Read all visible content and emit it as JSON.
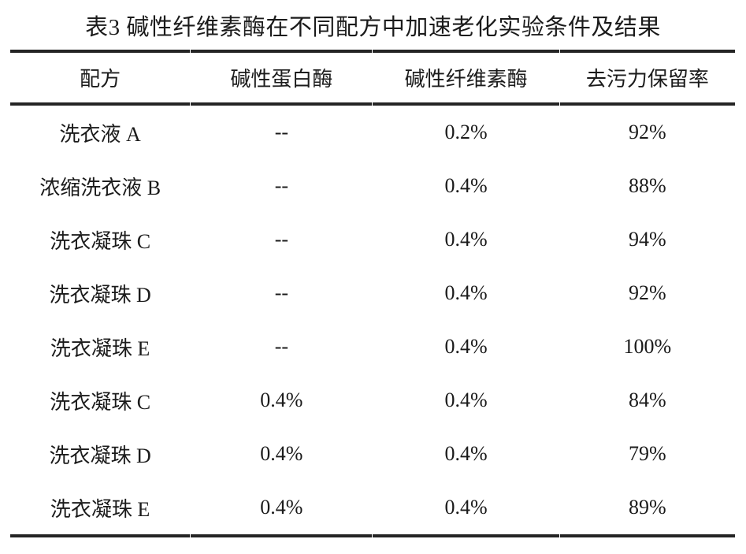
{
  "page": {
    "background_color": "#ffffff",
    "text_color": "#1b1b1b",
    "rule_color": "#242424"
  },
  "caption": "表3 碱性纤维素酶在不同配方中加速老化实验条件及结果",
  "table": {
    "headers": [
      "配方",
      "碱性蛋白酶",
      "碱性纤维素酶",
      "去污力保留率"
    ],
    "rows": [
      {
        "formula": "洗衣液 A",
        "protease": "--",
        "cellulase": "0.2%",
        "retention": "92%"
      },
      {
        "formula": "浓缩洗衣液 B",
        "protease": "--",
        "cellulase": "0.4%",
        "retention": "88%"
      },
      {
        "formula": "洗衣凝珠 C",
        "protease": "--",
        "cellulase": "0.4%",
        "retention": "94%"
      },
      {
        "formula": "洗衣凝珠 D",
        "protease": "--",
        "cellulase": "0.4%",
        "retention": "92%"
      },
      {
        "formula": "洗衣凝珠 E",
        "protease": "--",
        "cellulase": "0.4%",
        "retention": "100%"
      },
      {
        "formula": "洗衣凝珠 C",
        "protease": "0.4%",
        "cellulase": "0.4%",
        "retention": "84%"
      },
      {
        "formula": "洗衣凝珠 D",
        "protease": "0.4%",
        "cellulase": "0.4%",
        "retention": "79%"
      },
      {
        "formula": "洗衣凝珠 E",
        "protease": "0.4%",
        "cellulase": "0.4%",
        "retention": "89%"
      }
    ]
  }
}
